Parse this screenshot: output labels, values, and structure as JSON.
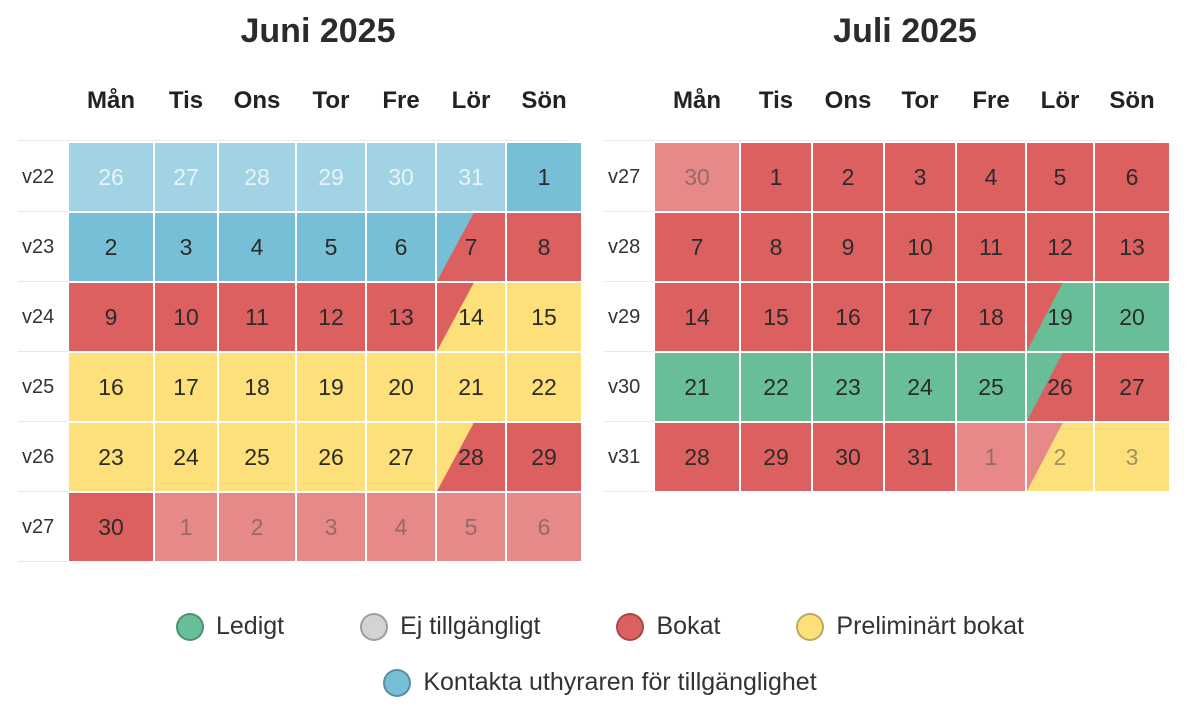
{
  "colors": {
    "blue": "#76bfd6",
    "blue_light": "#a1d3e5",
    "red": "#dd6060",
    "red_light": "#e88989",
    "yellow": "#fde07a",
    "green": "#68bf97",
    "gray": "#d3d3d3"
  },
  "weekdays": [
    "Mån",
    "Tis",
    "Ons",
    "Tor",
    "Fre",
    "Lör",
    "Sön"
  ],
  "months": [
    {
      "title": "Juni 2025",
      "weeks": [
        {
          "label": "v22",
          "days": [
            {
              "n": "26",
              "bg": "blue_light",
              "faded": "white"
            },
            {
              "n": "27",
              "bg": "blue_light",
              "faded": "white"
            },
            {
              "n": "28",
              "bg": "blue_light",
              "faded": "white"
            },
            {
              "n": "29",
              "bg": "blue_light",
              "faded": "white"
            },
            {
              "n": "30",
              "bg": "blue_light",
              "faded": "white"
            },
            {
              "n": "31",
              "bg": "blue_light",
              "faded": "white"
            },
            {
              "n": "1",
              "bg": "blue"
            }
          ]
        },
        {
          "label": "v23",
          "days": [
            {
              "n": "2",
              "bg": "blue"
            },
            {
              "n": "3",
              "bg": "blue"
            },
            {
              "n": "4",
              "bg": "blue"
            },
            {
              "n": "5",
              "bg": "blue"
            },
            {
              "n": "6",
              "bg": "blue"
            },
            {
              "n": "7",
              "bg": "blue",
              "split": "red"
            },
            {
              "n": "8",
              "bg": "red"
            }
          ]
        },
        {
          "label": "v24",
          "days": [
            {
              "n": "9",
              "bg": "red"
            },
            {
              "n": "10",
              "bg": "red"
            },
            {
              "n": "11",
              "bg": "red"
            },
            {
              "n": "12",
              "bg": "red"
            },
            {
              "n": "13",
              "bg": "red"
            },
            {
              "n": "14",
              "bg": "red",
              "split": "yellow"
            },
            {
              "n": "15",
              "bg": "yellow"
            }
          ]
        },
        {
          "label": "v25",
          "days": [
            {
              "n": "16",
              "bg": "yellow"
            },
            {
              "n": "17",
              "bg": "yellow"
            },
            {
              "n": "18",
              "bg": "yellow"
            },
            {
              "n": "19",
              "bg": "yellow"
            },
            {
              "n": "20",
              "bg": "yellow"
            },
            {
              "n": "21",
              "bg": "yellow"
            },
            {
              "n": "22",
              "bg": "yellow"
            }
          ]
        },
        {
          "label": "v26",
          "days": [
            {
              "n": "23",
              "bg": "yellow"
            },
            {
              "n": "24",
              "bg": "yellow"
            },
            {
              "n": "25",
              "bg": "yellow"
            },
            {
              "n": "26",
              "bg": "yellow"
            },
            {
              "n": "27",
              "bg": "yellow"
            },
            {
              "n": "28",
              "bg": "yellow",
              "split": "red"
            },
            {
              "n": "29",
              "bg": "red"
            }
          ]
        },
        {
          "label": "v27",
          "days": [
            {
              "n": "30",
              "bg": "red"
            },
            {
              "n": "1",
              "bg": "red_light",
              "faded": "dark"
            },
            {
              "n": "2",
              "bg": "red_light",
              "faded": "dark"
            },
            {
              "n": "3",
              "bg": "red_light",
              "faded": "dark"
            },
            {
              "n": "4",
              "bg": "red_light",
              "faded": "dark"
            },
            {
              "n": "5",
              "bg": "red_light",
              "faded": "dark"
            },
            {
              "n": "6",
              "bg": "red_light",
              "faded": "dark"
            }
          ]
        }
      ]
    },
    {
      "title": "Juli 2025",
      "weeks": [
        {
          "label": "v27",
          "days": [
            {
              "n": "30",
              "bg": "red_light",
              "faded": "dark"
            },
            {
              "n": "1",
              "bg": "red"
            },
            {
              "n": "2",
              "bg": "red"
            },
            {
              "n": "3",
              "bg": "red"
            },
            {
              "n": "4",
              "bg": "red"
            },
            {
              "n": "5",
              "bg": "red"
            },
            {
              "n": "6",
              "bg": "red"
            }
          ]
        },
        {
          "label": "v28",
          "days": [
            {
              "n": "7",
              "bg": "red"
            },
            {
              "n": "8",
              "bg": "red"
            },
            {
              "n": "9",
              "bg": "red"
            },
            {
              "n": "10",
              "bg": "red"
            },
            {
              "n": "11",
              "bg": "red"
            },
            {
              "n": "12",
              "bg": "red"
            },
            {
              "n": "13",
              "bg": "red"
            }
          ]
        },
        {
          "label": "v29",
          "days": [
            {
              "n": "14",
              "bg": "red"
            },
            {
              "n": "15",
              "bg": "red"
            },
            {
              "n": "16",
              "bg": "red"
            },
            {
              "n": "17",
              "bg": "red"
            },
            {
              "n": "18",
              "bg": "red"
            },
            {
              "n": "19",
              "bg": "red",
              "split": "green"
            },
            {
              "n": "20",
              "bg": "green"
            }
          ]
        },
        {
          "label": "v30",
          "days": [
            {
              "n": "21",
              "bg": "green"
            },
            {
              "n": "22",
              "bg": "green"
            },
            {
              "n": "23",
              "bg": "green"
            },
            {
              "n": "24",
              "bg": "green"
            },
            {
              "n": "25",
              "bg": "green"
            },
            {
              "n": "26",
              "bg": "green",
              "split": "red"
            },
            {
              "n": "27",
              "bg": "red"
            }
          ]
        },
        {
          "label": "v31",
          "days": [
            {
              "n": "28",
              "bg": "red"
            },
            {
              "n": "29",
              "bg": "red"
            },
            {
              "n": "30",
              "bg": "red"
            },
            {
              "n": "31",
              "bg": "red"
            },
            {
              "n": "1",
              "bg": "red_light",
              "faded": "dark"
            },
            {
              "n": "2",
              "bg": "red_light",
              "faded": "dark",
              "split": "yellow"
            },
            {
              "n": "3",
              "bg": "yellow",
              "faded": "dark"
            }
          ]
        }
      ]
    }
  ],
  "legend": [
    {
      "label": "Ledigt",
      "color": "green",
      "icon": "status-dot"
    },
    {
      "label": "Ej tillgängligt",
      "color": "gray",
      "icon": "status-dot"
    },
    {
      "label": "Bokat",
      "color": "red",
      "icon": "status-dot"
    },
    {
      "label": "Preliminärt bokat",
      "color": "yellow",
      "icon": "status-dot"
    },
    {
      "label": "Kontakta uthyraren för tillgänglighet",
      "color": "blue",
      "icon": "status-dot"
    }
  ]
}
